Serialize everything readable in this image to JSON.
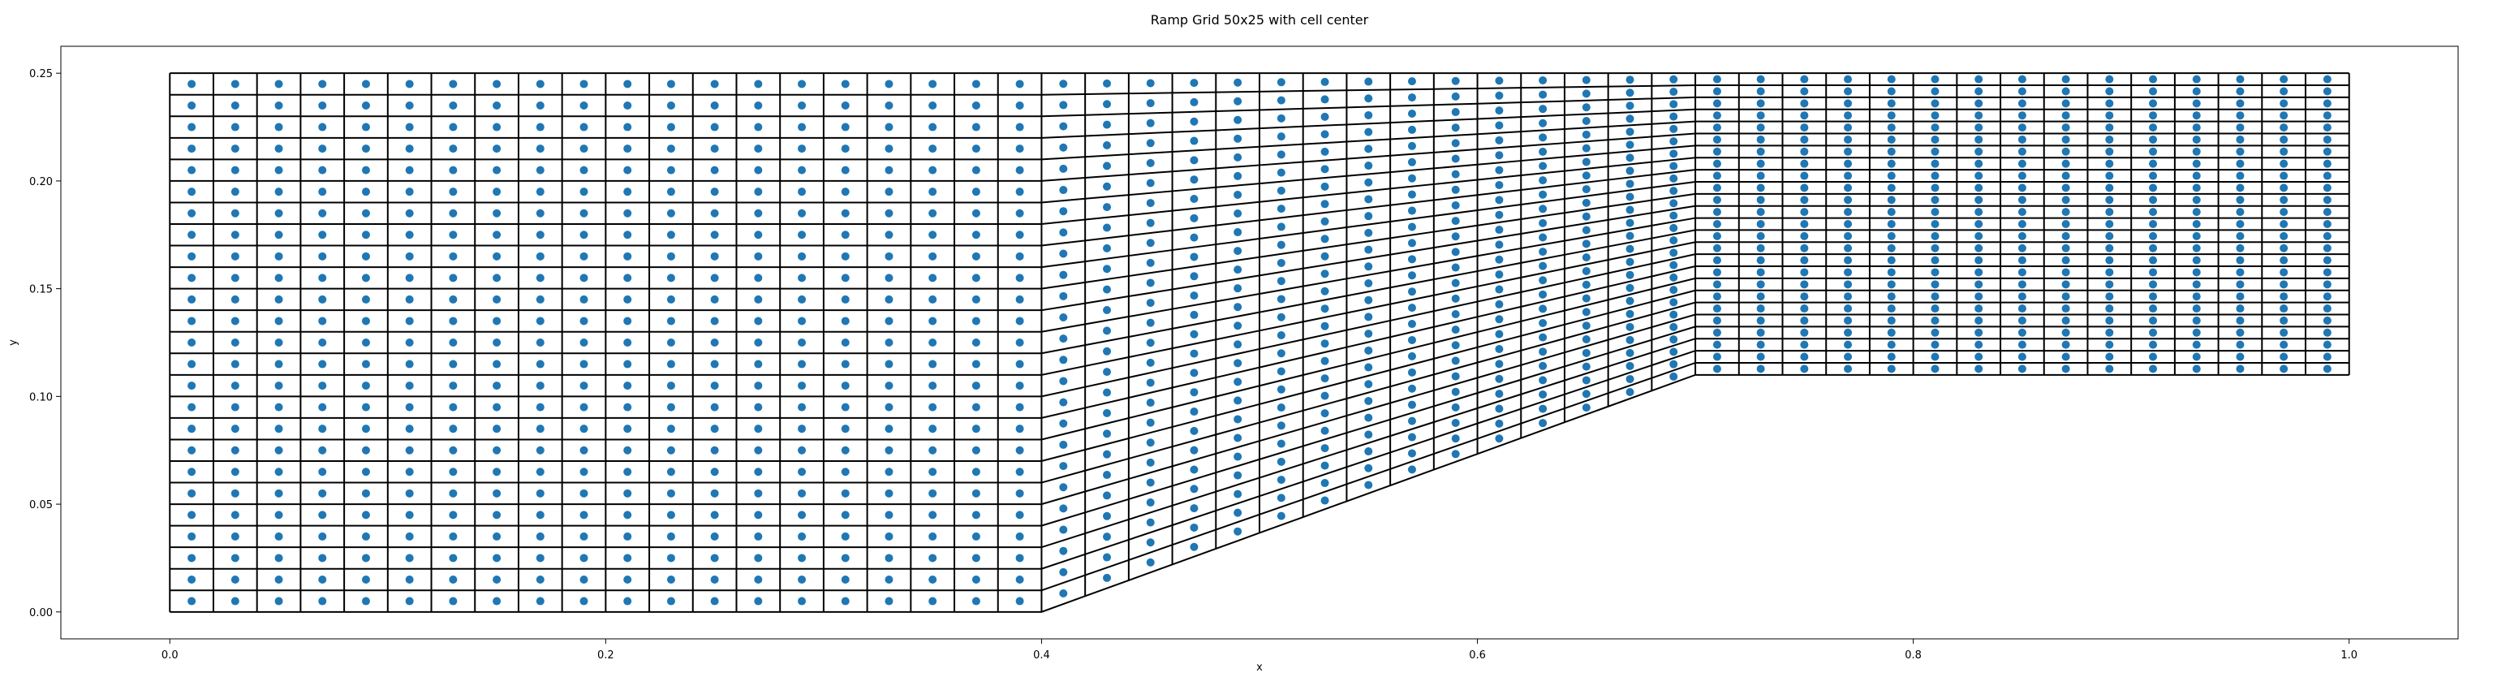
{
  "chart_data": {
    "type": "scatter",
    "title": "Ramp Grid 50x25 with cell center",
    "xlabel": "x",
    "ylabel": "y",
    "xlim": [
      -0.05,
      1.05
    ],
    "ylim": [
      -0.0125,
      0.2625
    ],
    "x_ticks": [
      0.0,
      0.2,
      0.4,
      0.6,
      0.8,
      1.0
    ],
    "x_tick_labels": [
      "0.0",
      "0.2",
      "0.4",
      "0.6",
      "0.8",
      "1.0"
    ],
    "y_ticks": [
      0.0,
      0.05,
      0.1,
      0.15,
      0.2,
      0.25
    ],
    "y_tick_labels": [
      "0.00",
      "0.05",
      "0.10",
      "0.15",
      "0.20",
      "0.25"
    ],
    "grid": false,
    "legend": "none",
    "mesh": {
      "nx": 50,
      "ny": 25,
      "x_range": [
        0.0,
        1.0
      ],
      "top_y": 0.25,
      "bottom_profile": {
        "x": [
          0.0,
          0.4,
          0.7,
          1.0
        ],
        "y": [
          0.0,
          0.0,
          0.11,
          0.11
        ]
      },
      "line_color": "#000000"
    },
    "series": [
      {
        "marker": "circle",
        "color": "#1f77b4",
        "values": "cell centers of every mesh cell"
      }
    ]
  }
}
